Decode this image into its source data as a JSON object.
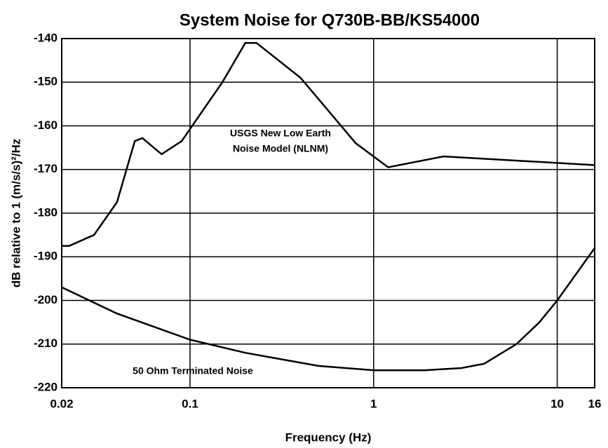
{
  "chart_data": {
    "type": "line",
    "title": "System Noise for Q730B-BB/KS54000",
    "xlabel": "Frequency (Hz)",
    "ylabel": "dB relative to 1 (m/s/s)²/Hz",
    "annotations": [
      "USGS New Low Earth",
      "Noise Model  (NLNM)",
      "50 Ohm Terminated Noise"
    ],
    "xscale": "log",
    "xlim": [
      0.02,
      16
    ],
    "xticks": [
      0.02,
      0.1,
      1,
      10,
      16
    ],
    "ylim": [
      -220,
      -140
    ],
    "yticks": [
      -220,
      -210,
      -200,
      -190,
      -180,
      -170,
      -160,
      -150,
      -140
    ],
    "grid": true,
    "series": [
      {
        "color": "#000000",
        "x": [
          0.02,
          0.022,
          0.03,
          0.04,
          0.05,
          0.055,
          0.07,
          0.09,
          0.15,
          0.2,
          0.23,
          0.4,
          0.8,
          1.2,
          2.4,
          16
        ],
        "values": [
          -187.5,
          -187.5,
          -185,
          -177.5,
          -163.5,
          -162.8,
          -166.5,
          -163.5,
          -150,
          -141,
          -141,
          -149,
          -164,
          -169.5,
          -167,
          -169
        ]
      },
      {
        "color": "#000000",
        "x": [
          0.02,
          0.04,
          0.1,
          0.2,
          0.5,
          1,
          1.9,
          3,
          4,
          6,
          8,
          10,
          16
        ],
        "values": [
          -197,
          -203,
          -209,
          -212,
          -215,
          -216,
          -216,
          -215.5,
          -214.5,
          -210,
          -205,
          -200,
          -188
        ]
      }
    ]
  }
}
